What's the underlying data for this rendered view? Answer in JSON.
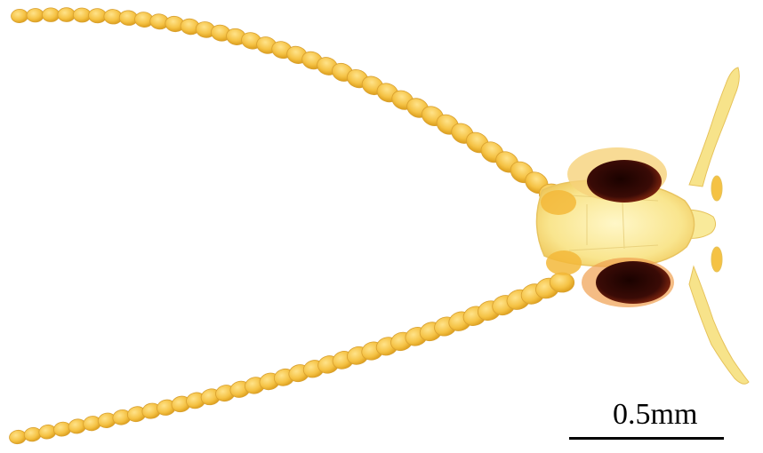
{
  "image": {
    "subject": "insect-head-with-antennae",
    "background_color": "#ffffff",
    "body_color": "#f2c040",
    "eye_color": "#3a0b06"
  },
  "scale_bar": {
    "label": "0.5mm",
    "color": "#000000"
  }
}
